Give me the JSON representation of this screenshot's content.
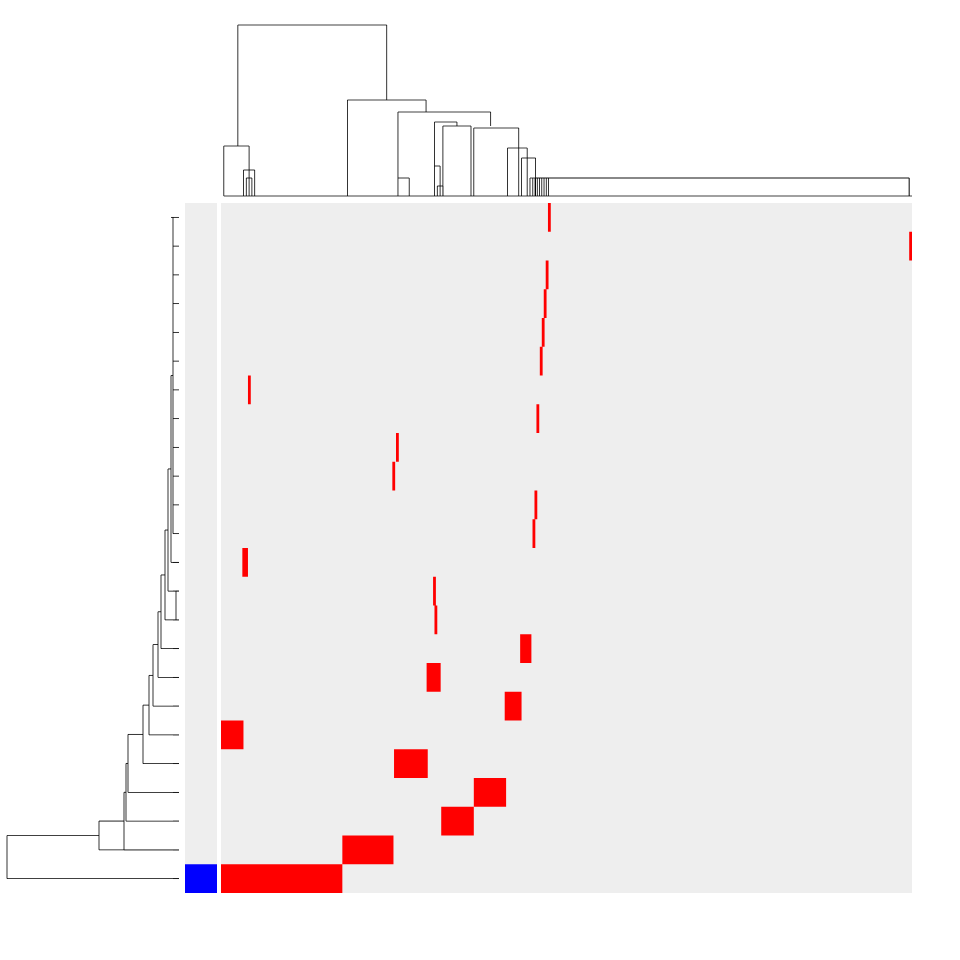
{
  "chart_data": {
    "type": "heatmap",
    "title": "",
    "xlabel": "",
    "ylabel": "",
    "grid": false,
    "legend": "none",
    "colors": {
      "background": "#ffffff",
      "cell_empty": "#eeeeee",
      "cell_filled": "#ff0000",
      "annotation": "#0000ff",
      "dendrogram": "#000000"
    },
    "n_columns": 246,
    "column_clusters": [
      {
        "start": 0,
        "count": 43,
        "color": "#ff0000"
      },
      {
        "start": 43,
        "count": 18,
        "color": "#ff0000"
      },
      {
        "start": 61,
        "count": 12,
        "color": "#ff0000"
      },
      {
        "start": 78,
        "count": 5,
        "color": "#ff0000"
      },
      {
        "start": 78.3,
        "count": 1,
        "color": "#ff0000"
      },
      {
        "start": 78.9,
        "count": 1,
        "color": "#ff0000"
      },
      {
        "start": 79,
        "count": 12,
        "color": "#ff0000"
      },
      {
        "start": 90.5,
        "count": 11,
        "color": "#ff0000"
      },
      {
        "start": 101.1,
        "count": 6,
        "color": "#ff0000"
      },
      {
        "start": 104.6,
        "count": 4,
        "color": "#ff0000"
      },
      {
        "start": 59.8,
        "count": 1,
        "color": "#ff0000"
      },
      {
        "start": 61,
        "count": 1,
        "color": "#ff0000"
      },
      {
        "start": 7.6,
        "count": 2,
        "color": "#ff0000"
      },
      {
        "start": 110.2,
        "count": 1,
        "color": "#ff0000"
      },
      {
        "start": 110.8,
        "count": 1,
        "color": "#ff0000"
      },
      {
        "start": 111.5,
        "count": 1,
        "color": "#ff0000"
      },
      {
        "start": 112.2,
        "count": 1,
        "color": "#ff0000"
      },
      {
        "start": 112.9,
        "count": 1,
        "color": "#ff0000"
      },
      {
        "start": 113.6,
        "count": 1,
        "color": "#ff0000"
      },
      {
        "start": 114.3,
        "count": 1,
        "color": "#ff0000"
      },
      {
        "start": 9.6,
        "count": 1,
        "color": "#ff0000"
      },
      {
        "start": 113.9,
        "count": 1,
        "color": "#ff0000"
      },
      {
        "start": 115.0,
        "count": 1,
        "color": "#ff0000"
      },
      {
        "start": 245,
        "count": 1,
        "color": "#ff0000"
      },
      {
        "start": 116.4,
        "count": 1,
        "color": "#ff0000"
      }
    ],
    "rows": [
      {
        "cells": [
          [
            116.4,
            1
          ]
        ],
        "annotation": false
      },
      {
        "cells": [
          [
            245,
            1
          ]
        ],
        "annotation": false
      },
      {
        "cells": [
          [
            115.6,
            1
          ]
        ],
        "annotation": false
      },
      {
        "cells": [
          [
            114.9,
            1
          ]
        ],
        "annotation": false
      },
      {
        "cells": [
          [
            114.2,
            1
          ]
        ],
        "annotation": false
      },
      {
        "cells": [
          [
            113.5,
            1
          ]
        ],
        "annotation": false
      },
      {
        "cells": [
          [
            9.6,
            1
          ]
        ],
        "annotation": false
      },
      {
        "cells": [
          [
            112.3,
            1
          ]
        ],
        "annotation": false
      },
      {
        "cells": [
          [
            62.3,
            1
          ]
        ],
        "annotation": false
      },
      {
        "cells": [
          [
            61.0,
            1
          ]
        ],
        "annotation": false
      },
      {
        "cells": [
          [
            111.6,
            1
          ]
        ],
        "annotation": false
      },
      {
        "cells": [
          [
            110.9,
            1
          ]
        ],
        "annotation": false
      },
      {
        "cells": [
          [
            7.6,
            2
          ]
        ],
        "annotation": false
      },
      {
        "cells": [
          [
            75.5,
            1
          ]
        ],
        "annotation": false
      },
      {
        "cells": [
          [
            76.0,
            1
          ]
        ],
        "annotation": false
      },
      {
        "cells": [
          [
            106.5,
            4
          ]
        ],
        "annotation": false
      },
      {
        "cells": [
          [
            73.2,
            5
          ]
        ],
        "annotation": false
      },
      {
        "cells": [
          [
            101.0,
            6
          ]
        ],
        "annotation": false
      },
      {
        "cells": [
          [
            0,
            8
          ]
        ],
        "annotation": false
      },
      {
        "cells": [
          [
            61.6,
            12
          ]
        ],
        "annotation": false
      },
      {
        "cells": [
          [
            90.0,
            11.5
          ]
        ],
        "annotation": false
      },
      {
        "cells": [
          [
            78.4,
            11.6
          ]
        ],
        "annotation": false
      },
      {
        "cells": [
          [
            43.2,
            18.2
          ]
        ],
        "annotation": false
      },
      {
        "cells": [
          [
            0,
            43.2
          ]
        ],
        "annotation": true
      }
    ],
    "row_dendrogram": "hierarchical",
    "column_dendrogram": "hierarchical"
  }
}
